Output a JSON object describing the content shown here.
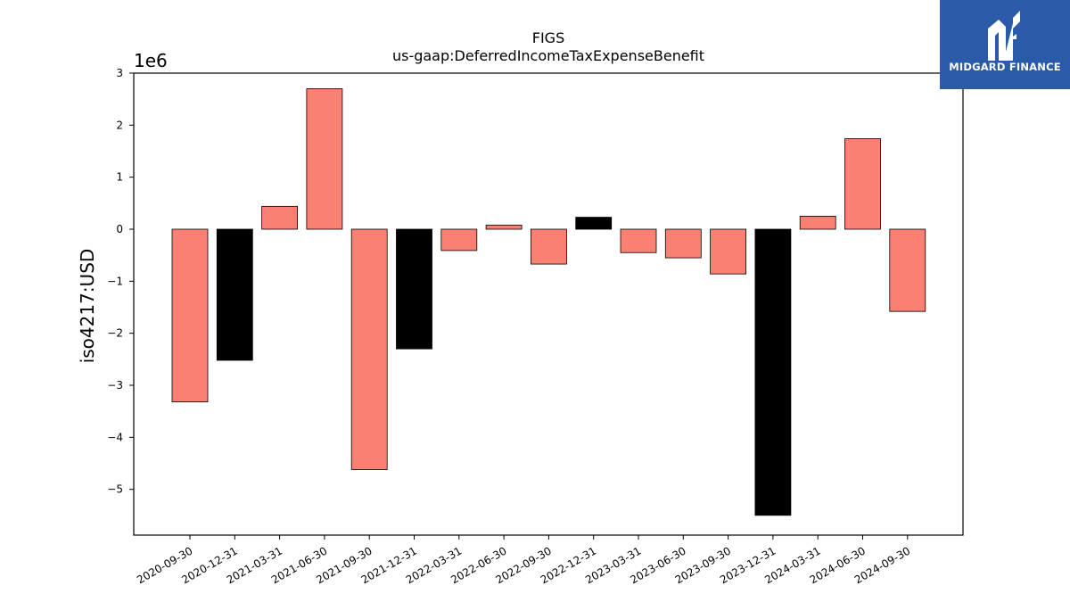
{
  "chart_data": {
    "type": "bar",
    "title": "FIGS",
    "subtitle": "us-gaap:DeferredIncomeTaxExpenseBenefit",
    "ylabel": "iso4217:USD",
    "xlabel": "",
    "offset_label": "1e6",
    "scale": 1000000,
    "ylim": [
      -5.88,
      3.0
    ],
    "yticks": [
      3,
      2,
      1,
      0,
      -1,
      -2,
      -3,
      -4,
      -5
    ],
    "ytick_labels": [
      "3",
      "2",
      "1",
      "0",
      "−1",
      "−2",
      "−3",
      "−4",
      "−5"
    ],
    "grid": false,
    "categories": [
      "2020-09-30",
      "2020-12-31",
      "2021-03-31",
      "2021-06-30",
      "2021-09-30",
      "2021-12-31",
      "2022-03-31",
      "2022-06-30",
      "2022-09-30",
      "2022-12-31",
      "2023-03-31",
      "2023-06-30",
      "2023-09-30",
      "2023-12-31",
      "2024-03-31",
      "2024-06-30",
      "2024-09-30"
    ],
    "values": [
      -3320000,
      -2520000,
      440000,
      2700000,
      -4620000,
      -2300000,
      -410000,
      80000,
      -670000,
      230000,
      -450000,
      -550000,
      -860000,
      -5500000,
      250000,
      1740000,
      -1580000
    ],
    "colors": [
      "#fa8072",
      "#000000",
      "#fa8072",
      "#fa8072",
      "#fa8072",
      "#000000",
      "#fa8072",
      "#fa8072",
      "#fa8072",
      "#000000",
      "#fa8072",
      "#fa8072",
      "#fa8072",
      "#000000",
      "#fa8072",
      "#fa8072",
      "#fa8072"
    ]
  },
  "logo": {
    "text": "MIDGARD FINANCE",
    "background": "#2b5aa8"
  }
}
